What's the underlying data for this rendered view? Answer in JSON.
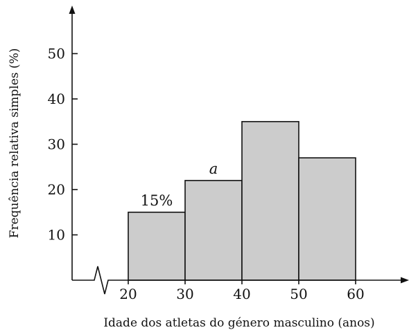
{
  "chart_data": {
    "type": "bar",
    "subtype": "histogram",
    "bins": [
      {
        "from": 20,
        "to": 30,
        "value": 15,
        "label": "15%"
      },
      {
        "from": 30,
        "to": 40,
        "value": 22,
        "label": "a"
      },
      {
        "from": 40,
        "to": 50,
        "value": 35,
        "label": ""
      },
      {
        "from": 50,
        "to": 60,
        "value": 27,
        "label": ""
      }
    ],
    "x_ticks": [
      "20",
      "30",
      "40",
      "50",
      "60"
    ],
    "y_ticks": [
      "10",
      "20",
      "30",
      "40",
      "50"
    ],
    "xlabel": "Idade dos atletas do género masculino (anos)",
    "ylabel": "Frequência relativa simples (%)",
    "xlim": [
      20,
      60
    ],
    "ylim": [
      0,
      50
    ],
    "axis_break_x": true,
    "grid": false,
    "bar_color": "#cccccc",
    "edge_color": "#111111"
  }
}
